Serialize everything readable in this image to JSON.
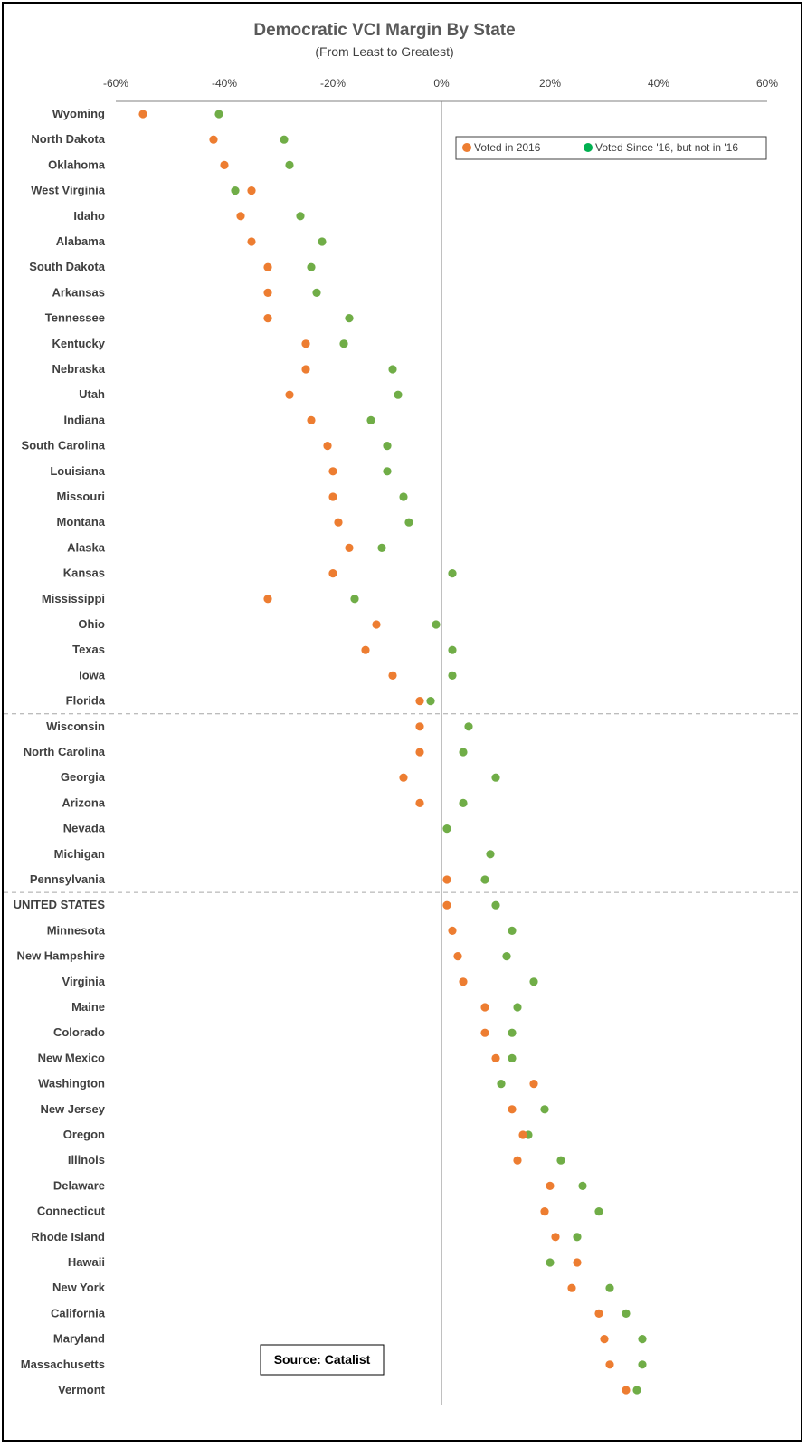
{
  "chart_data": {
    "type": "scatter",
    "title": "Democratic VCI Margin By State",
    "subtitle": "(From Least to Greatest)",
    "xlim": [
      -60,
      60
    ],
    "x_ticks": [
      "-60%",
      "-40%",
      "-20%",
      "0%",
      "20%",
      "40%",
      "60%"
    ],
    "x_tick_values": [
      -60,
      -40,
      -20,
      0,
      20,
      40,
      60
    ],
    "categories": [
      "Wyoming",
      "North Dakota",
      "Oklahoma",
      "West Virginia",
      "Idaho",
      "Alabama",
      "South Dakota",
      "Arkansas",
      "Tennessee",
      "Kentucky",
      "Nebraska",
      "Utah",
      "Indiana",
      "South Carolina",
      "Louisiana",
      "Missouri",
      "Montana",
      "Alaska",
      "Kansas",
      "Mississippi",
      "Ohio",
      "Texas",
      "Iowa",
      "Florida",
      "Wisconsin",
      "North Carolina",
      "Georgia",
      "Arizona",
      "Nevada",
      "Michigan",
      "Pennsylvania",
      "UNITED STATES",
      "Minnesota",
      "New Hampshire",
      "Virginia",
      "Maine",
      "Colorado",
      "New Mexico",
      "Washington",
      "New Jersey",
      "Oregon",
      "Illinois",
      "Delaware",
      "Connecticut",
      "Rhode Island",
      "Hawaii",
      "New York",
      "California",
      "Maryland",
      "Massachusetts",
      "Vermont"
    ],
    "series": [
      {
        "name": "Voted in 2016",
        "color": "#ED7D31",
        "values": [
          -55,
          -42,
          -40,
          -35,
          -37,
          -35,
          -32,
          -32,
          -32,
          -25,
          -25,
          -28,
          -24,
          -21,
          -20,
          -20,
          -19,
          -17,
          -20,
          -32,
          -12,
          -14,
          -9,
          -4,
          -4,
          -4,
          -7,
          -4,
          null,
          null,
          1,
          1,
          2,
          3,
          4,
          8,
          8,
          10,
          17,
          13,
          15,
          14,
          20,
          19,
          21,
          25,
          24,
          29,
          30,
          31,
          34
        ]
      },
      {
        "name": "Voted Since '16, but not in '16",
        "color": "#70AD47",
        "values": [
          -41,
          -29,
          -28,
          -38,
          -26,
          -22,
          -24,
          -23,
          -17,
          -18,
          -9,
          -8,
          -13,
          -10,
          -10,
          -7,
          -6,
          -11,
          2,
          -16,
          -1,
          2,
          2,
          -2,
          5,
          4,
          10,
          4,
          1,
          9,
          8,
          10,
          13,
          12,
          17,
          14,
          13,
          13,
          11,
          19,
          16,
          22,
          26,
          29,
          25,
          20,
          31,
          34,
          37,
          37,
          36
        ]
      }
    ],
    "legend_position": "top-right",
    "legend_marker_colors": [
      "#ED7D31",
      "#00B050"
    ],
    "separators_after": [
      "Florida",
      "Pennsylvania"
    ],
    "grid": false,
    "annotation": "Source: Catalist"
  }
}
